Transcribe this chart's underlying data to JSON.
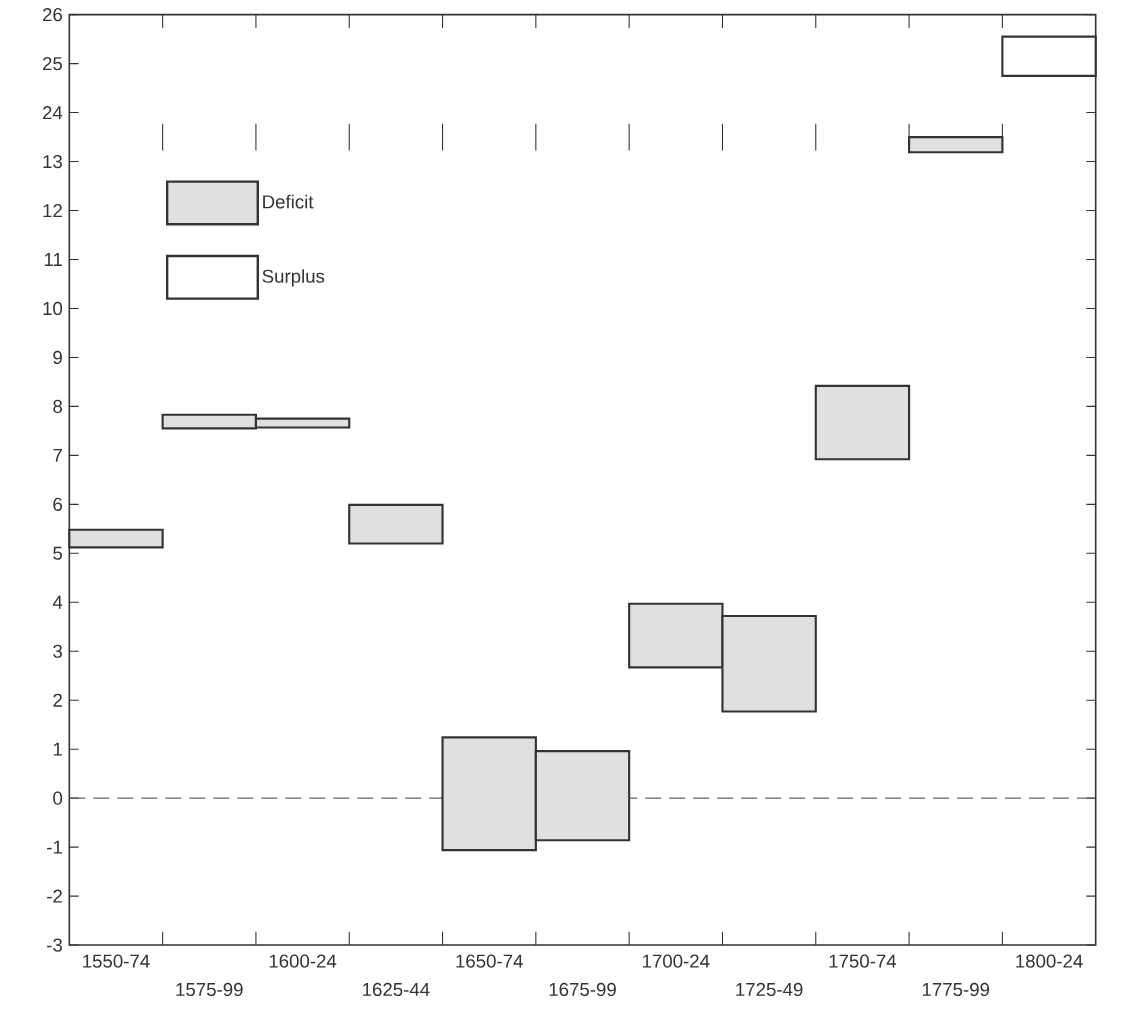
{
  "chart_data": [
    {
      "type": "bar",
      "categories": [
        "1550-74",
        "1575-99",
        "1600-24",
        "1625-44",
        "1650-74",
        "1675-99",
        "1700-24",
        "1725-49",
        "1750-74",
        "1775-99",
        "1800-24"
      ],
      "ylim": [
        23.5,
        26
      ],
      "yticks": [
        24,
        25,
        26
      ],
      "tick_labels": "y",
      "series": [
        {
          "color": "#ffffff",
          "base": [
            null,
            null,
            null,
            null,
            null,
            null,
            null,
            null,
            null,
            null,
            24.75
          ],
          "values": [
            null,
            null,
            null,
            null,
            null,
            null,
            null,
            null,
            null,
            null,
            0.8
          ]
        }
      ]
    },
    {
      "type": "bar",
      "categories": [
        "1550-74",
        "1575-99",
        "1600-24",
        "1625-44",
        "1650-74",
        "1675-99",
        "1700-24",
        "1725-49",
        "1750-74",
        "1775-99",
        "1800-24"
      ],
      "ylim": [
        -3,
        13.5
      ],
      "yticks": [
        -3,
        -2,
        -1,
        0,
        1,
        2,
        3,
        4,
        5,
        6,
        7,
        8,
        9,
        10,
        11,
        12,
        13
      ],
      "legend": "top left",
      "ref_lines": [
        {
          "axis": "y",
          "value": 0,
          "line_style": "dashed",
          "color": "#666666"
        }
      ],
      "series": [
        {
          "name": "Deficit",
          "color": "#e0e0e0",
          "base": [
            5.12,
            7.55,
            7.57,
            5.2,
            -1.06,
            -0.86,
            2.67,
            1.77,
            6.92,
            13.19,
            null
          ],
          "values": [
            0.36,
            0.28,
            0.18,
            0.79,
            2.3,
            1.82,
            1.3,
            1.95,
            1.5,
            0.31,
            null
          ]
        },
        {
          "name": "Surplus",
          "color": "#ffffff",
          "base": [
            null,
            null,
            null,
            null,
            null,
            null,
            null,
            null,
            null,
            null,
            null
          ],
          "values": [
            null,
            null,
            null,
            null,
            null,
            null,
            null,
            null,
            null,
            null,
            null
          ]
        }
      ]
    }
  ]
}
